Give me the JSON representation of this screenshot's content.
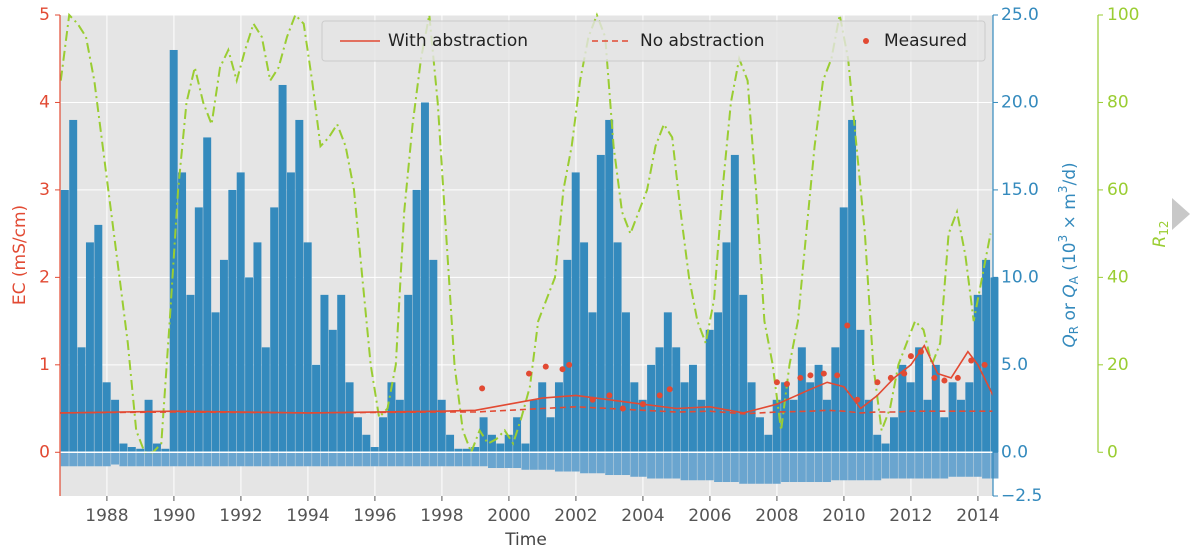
{
  "chart_data": {
    "type": "combo",
    "xlabel": "Time",
    "ylabel": "EC (mS/cm)",
    "y2label": [
      "Q",
      "R",
      " or ",
      "Q",
      "A",
      " (10",
      "3",
      " × m",
      "3",
      "/d)"
    ],
    "y3label": [
      "R",
      "12"
    ],
    "xlim": [
      1986.6,
      2014.45
    ],
    "xticks": [
      1988,
      1990,
      1992,
      1994,
      1996,
      1998,
      2000,
      2002,
      2004,
      2006,
      2008,
      2010,
      2012,
      2014
    ],
    "ylim": [
      -0.5,
      5
    ],
    "yticks": [
      0,
      1,
      2,
      3,
      4,
      5
    ],
    "y2lim": [
      -2.5,
      25
    ],
    "y2ticks": [
      {
        "value": -2.5,
        "label": "−2.5"
      },
      {
        "value": 0,
        "label": "0.0"
      },
      {
        "value": 5,
        "label": "5.0"
      },
      {
        "value": 10,
        "label": "10.0"
      },
      {
        "value": 15,
        "label": "15.0"
      },
      {
        "value": 20,
        "label": "20.0"
      },
      {
        "value": 25,
        "label": "25.0"
      }
    ],
    "y3lim": [
      -10,
      100
    ],
    "y3ticks": [
      0,
      20,
      40,
      60,
      80,
      100
    ],
    "grid": true,
    "legend": "top",
    "x": [
      1986.625,
      1986.875,
      1987.125,
      1987.375,
      1987.625,
      1987.875,
      1988.125,
      1988.375,
      1988.625,
      1988.875,
      1989.125,
      1989.375,
      1989.625,
      1989.875,
      1990.125,
      1990.375,
      1990.625,
      1990.875,
      1991.125,
      1991.375,
      1991.625,
      1991.875,
      1992.125,
      1992.375,
      1992.625,
      1992.875,
      1993.125,
      1993.375,
      1993.625,
      1993.875,
      1994.125,
      1994.375,
      1994.625,
      1994.875,
      1995.125,
      1995.375,
      1995.625,
      1995.875,
      1996.125,
      1996.375,
      1996.625,
      1996.875,
      1997.125,
      1997.375,
      1997.625,
      1997.875,
      1998.125,
      1998.375,
      1998.625,
      1998.875,
      1999.125,
      1999.375,
      1999.625,
      1999.875,
      2000.125,
      2000.375,
      2000.625,
      2000.875,
      2001.125,
      2001.375,
      2001.625,
      2001.875,
      2002.125,
      2002.375,
      2002.625,
      2002.875,
      2003.125,
      2003.375,
      2003.625,
      2003.875,
      2004.125,
      2004.375,
      2004.625,
      2004.875,
      2005.125,
      2005.375,
      2005.625,
      2005.875,
      2006.125,
      2006.375,
      2006.625,
      2006.875,
      2007.125,
      2007.375,
      2007.625,
      2007.875,
      2008.125,
      2008.375,
      2008.625,
      2008.875,
      2009.125,
      2009.375,
      2009.625,
      2009.875,
      2010.125,
      2010.375,
      2010.625,
      2010.875,
      2011.125,
      2011.375,
      2011.625,
      2011.875,
      2012.125,
      2012.375,
      2012.625,
      2012.875,
      2013.125,
      2013.375,
      2013.625,
      2013.875,
      2014.125,
      2014.375
    ],
    "series": [
      {
        "type": "bar",
        "axis": "y2",
        "color": "#348abd",
        "values": [
          15,
          19,
          6,
          12,
          13,
          4,
          3,
          0.5,
          0.3,
          0.2,
          3,
          0.5,
          0.2,
          23,
          16,
          9,
          14,
          18,
          8,
          11,
          15,
          16,
          10,
          12,
          6,
          14,
          21,
          16,
          19,
          12,
          5,
          9,
          7,
          9,
          4,
          2,
          1,
          0.3,
          2,
          4,
          3,
          9,
          15,
          20,
          11,
          3,
          1,
          0.2,
          0.2,
          0.3,
          2,
          1,
          0.5,
          1,
          2,
          0.5,
          3,
          4,
          2,
          4,
          11,
          16,
          12,
          8,
          17,
          19,
          12,
          8,
          4,
          3,
          5,
          6,
          8,
          6,
          4,
          5,
          3,
          7,
          8,
          12,
          17,
          9,
          4,
          2,
          1,
          3,
          4,
          3,
          6,
          4,
          5,
          3,
          6,
          14,
          19,
          7,
          3,
          1,
          0.5,
          2,
          5,
          4,
          6,
          3,
          5,
          2,
          4,
          3,
          4,
          9,
          11,
          10
        ]
      },
      {
        "type": "bar",
        "axis": "y2",
        "color": "#6aa5cf",
        "values": [
          -0.8,
          -0.8,
          -0.8,
          -0.8,
          -0.8,
          -0.8,
          -0.7,
          -0.8,
          -0.8,
          -0.8,
          -0.8,
          -0.8,
          -0.8,
          -0.8,
          -0.8,
          -0.8,
          -0.8,
          -0.8,
          -0.8,
          -0.8,
          -0.8,
          -0.8,
          -0.8,
          -0.8,
          -0.8,
          -0.8,
          -0.8,
          -0.8,
          -0.8,
          -0.8,
          -0.8,
          -0.8,
          -0.8,
          -0.8,
          -0.8,
          -0.8,
          -0.8,
          -0.8,
          -0.8,
          -0.8,
          -0.8,
          -0.8,
          -0.8,
          -0.8,
          -0.8,
          -0.8,
          -0.8,
          -0.8,
          -0.8,
          -0.8,
          -0.8,
          -0.9,
          -0.9,
          -0.9,
          -0.9,
          -1.0,
          -1.0,
          -1.0,
          -1.0,
          -1.1,
          -1.1,
          -1.1,
          -1.2,
          -1.2,
          -1.2,
          -1.3,
          -1.3,
          -1.3,
          -1.4,
          -1.4,
          -1.5,
          -1.5,
          -1.5,
          -1.5,
          -1.6,
          -1.6,
          -1.6,
          -1.6,
          -1.7,
          -1.7,
          -1.7,
          -1.8,
          -1.8,
          -1.8,
          -1.8,
          -1.8,
          -1.7,
          -1.7,
          -1.7,
          -1.7,
          -1.7,
          -1.7,
          -1.6,
          -1.6,
          -1.6,
          -1.6,
          -1.6,
          -1.6,
          -1.5,
          -1.5,
          -1.5,
          -1.5,
          -1.5,
          -1.5,
          -1.5,
          -1.5,
          -1.4,
          -1.4,
          -1.4,
          -1.4,
          -1.5,
          -1.5
        ]
      },
      {
        "type": "line",
        "axis": "y3",
        "color": "#9acd32",
        "linestyle": "dashdot",
        "values": [
          85,
          100,
          98,
          95,
          85,
          70,
          55,
          40,
          25,
          5,
          0,
          0,
          2,
          30,
          60,
          80,
          88,
          80,
          75,
          88,
          92,
          85,
          92,
          98,
          95,
          85,
          88,
          95,
          100,
          98,
          85,
          70,
          72,
          75,
          70,
          60,
          40,
          20,
          8,
          10,
          20,
          55,
          75,
          90,
          100,
          80,
          50,
          20,
          5,
          0,
          5,
          2,
          3,
          5,
          2,
          8,
          15,
          30,
          35,
          40,
          60,
          70,
          85,
          95,
          100,
          95,
          70,
          55,
          50,
          55,
          60,
          70,
          75,
          72,
          55,
          40,
          30,
          25,
          35,
          60,
          80,
          90,
          85,
          60,
          30,
          20,
          5,
          20,
          30,
          50,
          70,
          85,
          90,
          100,
          90,
          70,
          50,
          20,
          5,
          10,
          20,
          25,
          30,
          28,
          20,
          25,
          50,
          55,
          45,
          30,
          40,
          50
        ]
      },
      {
        "name": "With abstraction",
        "type": "line",
        "axis": "y",
        "color": "#e24a33",
        "linestyle": "solid",
        "x": [
          1986.6,
          1990,
          1994,
          1998,
          1999,
          2000,
          2001,
          2002,
          2003,
          2004,
          2005,
          2006,
          2007,
          2008,
          2009,
          2009.5,
          2010,
          2010.5,
          2011,
          2011.5,
          2012,
          2012.4,
          2012.8,
          2013.2,
          2013.7,
          2014,
          2014.45
        ],
        "values": [
          0.45,
          0.47,
          0.45,
          0.47,
          0.48,
          0.55,
          0.62,
          0.65,
          0.6,
          0.55,
          0.5,
          0.52,
          0.45,
          0.55,
          0.72,
          0.8,
          0.75,
          0.5,
          0.65,
          0.85,
          1.0,
          1.22,
          0.9,
          0.85,
          1.15,
          1.0,
          0.65
        ]
      },
      {
        "name": "No abstraction",
        "type": "line",
        "axis": "y",
        "color": "#e24a33",
        "linestyle": "dashed",
        "x": [
          1986.6,
          1990,
          1994,
          1998,
          1999,
          2000,
          2001,
          2002,
          2003,
          2004,
          2005,
          2006,
          2007,
          2008,
          2009,
          2009.5,
          2010,
          2010.5,
          2011,
          2011.5,
          2012,
          2012.4,
          2012.8,
          2013.2,
          2013.7,
          2014,
          2014.45
        ],
        "values": [
          0.45,
          0.46,
          0.45,
          0.46,
          0.46,
          0.48,
          0.5,
          0.52,
          0.5,
          0.48,
          0.46,
          0.47,
          0.44,
          0.46,
          0.47,
          0.48,
          0.47,
          0.45,
          0.46,
          0.46,
          0.47,
          0.47,
          0.47,
          0.47,
          0.47,
          0.47,
          0.47
        ]
      },
      {
        "name": "Measured",
        "type": "scatter",
        "axis": "y",
        "color": "#e24a33",
        "x": [
          1999.2,
          2000.6,
          2001.1,
          2001.6,
          2001.8,
          2002.5,
          2003.0,
          2003.4,
          2004.0,
          2004.5,
          2004.8,
          2008.0,
          2008.3,
          2008.7,
          2009.0,
          2009.4,
          2009.8,
          2010.1,
          2010.4,
          2011.0,
          2011.4,
          2011.8,
          2012.0,
          2012.3,
          2012.7,
          2013.0,
          2013.4,
          2013.8,
          2014.2
        ],
        "values": [
          0.73,
          0.9,
          0.98,
          0.95,
          1.0,
          0.6,
          0.65,
          0.5,
          0.55,
          0.65,
          0.72,
          0.8,
          0.78,
          0.85,
          0.88,
          0.9,
          0.88,
          1.45,
          0.6,
          0.8,
          0.85,
          0.9,
          1.1,
          1.15,
          0.85,
          0.82,
          0.85,
          1.05,
          1.0
        ]
      }
    ]
  }
}
